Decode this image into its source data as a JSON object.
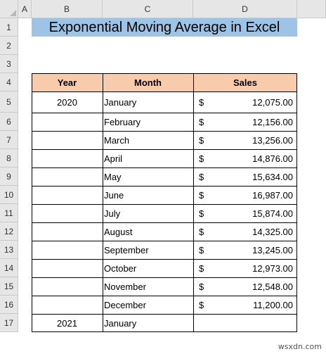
{
  "columns": [
    "A",
    "B",
    "C",
    "D"
  ],
  "rows": [
    "1",
    "2",
    "3",
    "4",
    "5",
    "6",
    "7",
    "8",
    "9",
    "10",
    "11",
    "12",
    "13",
    "14",
    "15",
    "16",
    "17"
  ],
  "title": "Exponential Moving Average in Excel",
  "table": {
    "headers": [
      "Year",
      "Month",
      "Sales"
    ],
    "currency_symbol": "$",
    "rows": [
      {
        "year": "2020",
        "month": "January",
        "sales": "12,075.00"
      },
      {
        "year": "",
        "month": "February",
        "sales": "12,156.00"
      },
      {
        "year": "",
        "month": "March",
        "sales": "13,256.00"
      },
      {
        "year": "",
        "month": "April",
        "sales": "14,876.00"
      },
      {
        "year": "",
        "month": "May",
        "sales": "15,634.00"
      },
      {
        "year": "",
        "month": "June",
        "sales": "16,987.00"
      },
      {
        "year": "",
        "month": "July",
        "sales": "15,874.00"
      },
      {
        "year": "",
        "month": "August",
        "sales": "14,325.00"
      },
      {
        "year": "",
        "month": "September",
        "sales": "13,245.00"
      },
      {
        "year": "",
        "month": "October",
        "sales": "12,973.00"
      },
      {
        "year": "",
        "month": "November",
        "sales": "12,548.00"
      },
      {
        "year": "",
        "month": "December",
        "sales": "11,200.00"
      },
      {
        "year": "2021",
        "month": "January",
        "sales": ""
      }
    ]
  },
  "colors": {
    "title_fill": "#9dc3e6",
    "header_fill": "#f8cbad",
    "header_bg": "#e6e6e6"
  },
  "watermark": "wsxdn.com"
}
